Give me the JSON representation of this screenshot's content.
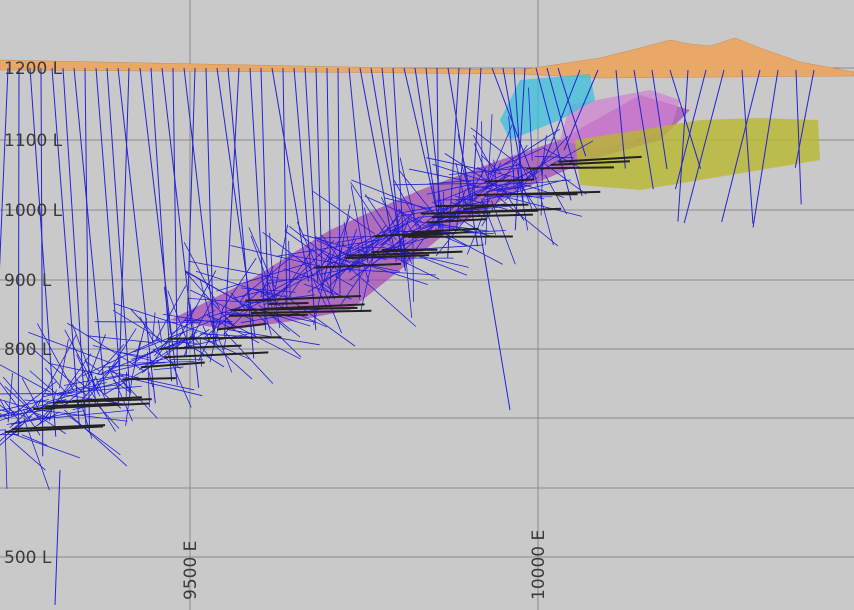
{
  "levels": [
    "1200 L",
    "1100 L",
    "1000 L",
    "900 L",
    "800 L",
    "500 L"
  ],
  "eastings": [
    "9500 E",
    "10000 E"
  ]
}
